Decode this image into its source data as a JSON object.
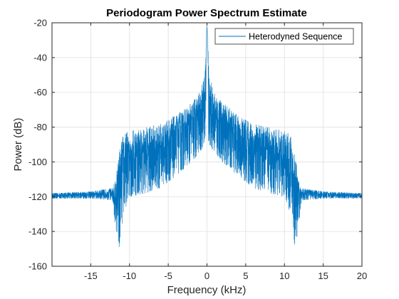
{
  "chart_data": {
    "type": "line",
    "title": "Periodogram Power Spectrum Estimate",
    "xlabel": "Frequency (kHz)",
    "ylabel": "Power (dB)",
    "xlim": [
      -20,
      20
    ],
    "ylim": [
      -160,
      -20
    ],
    "xticks": [
      -15,
      -10,
      -5,
      0,
      5,
      10,
      15,
      20
    ],
    "yticks": [
      -20,
      -40,
      -60,
      -80,
      -100,
      -120,
      -140,
      -160
    ],
    "grid": true,
    "legend_position": "top-right",
    "series": [
      {
        "name": "Heterodyned Sequence",
        "color": "#0072BD",
        "envelope": {
          "x": [
            -20,
            -15,
            -12.2,
            -11.8,
            -11.3,
            -10.8,
            -10,
            -8,
            -6,
            -4,
            -2,
            -1,
            -0.3,
            0,
            0.3,
            1,
            2,
            4,
            6,
            8,
            10,
            10.8,
            11.3,
            11.8,
            12.2,
            15,
            20
          ],
          "upper": [
            -118,
            -117,
            -115,
            -110,
            -93,
            -84,
            -82,
            -80,
            -78,
            -73,
            -66,
            -60,
            -50,
            -22,
            -50,
            -60,
            -66,
            -73,
            -78,
            -80,
            -82,
            -84,
            -93,
            -110,
            -115,
            -117,
            -118
          ],
          "lower": [
            -121,
            -121,
            -122,
            -140,
            -152,
            -130,
            -120,
            -118,
            -115,
            -108,
            -100,
            -95,
            -90,
            -85,
            -90,
            -95,
            -100,
            -108,
            -115,
            -118,
            -120,
            -130,
            -148,
            -140,
            -122,
            -121,
            -121
          ]
        }
      }
    ]
  }
}
